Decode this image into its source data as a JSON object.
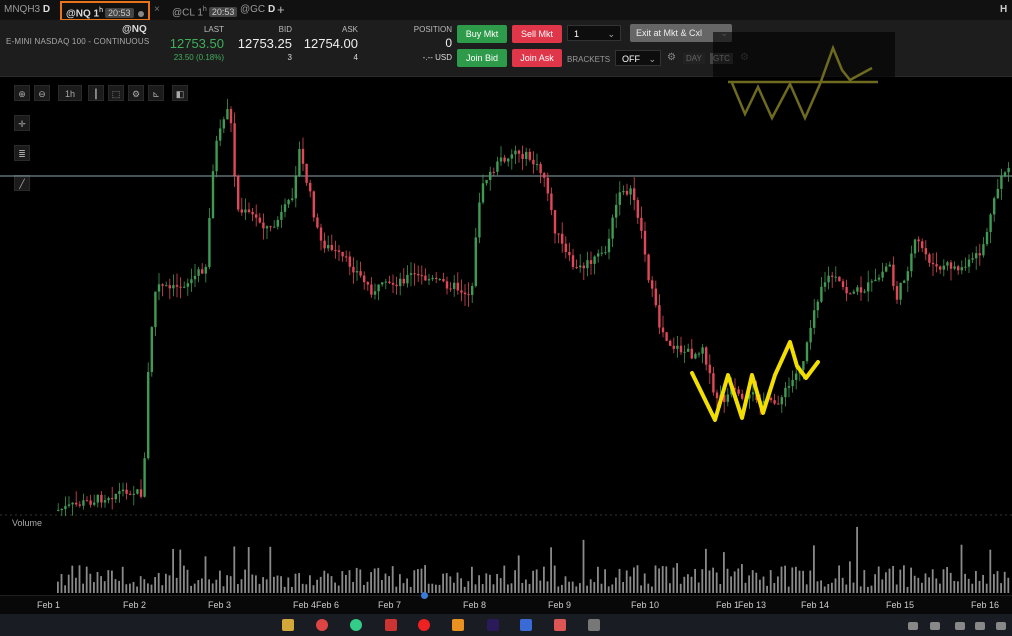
{
  "tabs": [
    {
      "label": "MNQH3",
      "badge": "D"
    },
    {
      "label": "@NQ 1",
      "sup": "h",
      "time": "20:53"
    },
    {
      "label": "@CL 1",
      "sup": "h",
      "time": "20:53"
    },
    {
      "label": "@GC",
      "badge": "D"
    }
  ],
  "tab_controls": {
    "close": "×",
    "add": "+",
    "right_key": "H"
  },
  "instrument": {
    "symbol": "@NQ",
    "name": "E-MINI NASDAQ 100 - CONTINUOUS"
  },
  "quote": {
    "last_label": "LAST",
    "last": "12753.50",
    "change": "23.50 (0.18%)",
    "bid_label": "BID",
    "bid": "12753.25",
    "bid_size": "3",
    "ask_label": "ASK",
    "ask": "12754.00",
    "ask_size": "4",
    "position_label": "POSITION",
    "position": "0",
    "position_pnl": "-.-- USD"
  },
  "order_buttons": {
    "buy_mkt": "Buy Mkt",
    "sell_mkt": "Sell Mkt",
    "join_bid": "Join Bid",
    "join_ask": "Join Ask",
    "exit": "Exit at Mkt & Cxl"
  },
  "order_qty": "1",
  "brackets": {
    "label": "BRACKETS",
    "value": "OFF",
    "tif_day": "DAY",
    "tif_gtc": "GTC"
  },
  "toolbar": {
    "interval": "1h"
  },
  "volume_label": "Volume",
  "x_axis": [
    "Feb 1",
    "Feb 2",
    "Feb 3",
    "Feb 4",
    "Feb 6",
    "Feb 7",
    "Feb 8",
    "Feb 9",
    "Feb 10",
    "Feb 1",
    "Feb 13",
    "Feb 14",
    "Feb 15",
    "Feb 16"
  ],
  "colors": {
    "up": "#3f9a54",
    "down": "#e0485a",
    "annotation": "#f2de00",
    "accent": "#e8731a"
  }
}
